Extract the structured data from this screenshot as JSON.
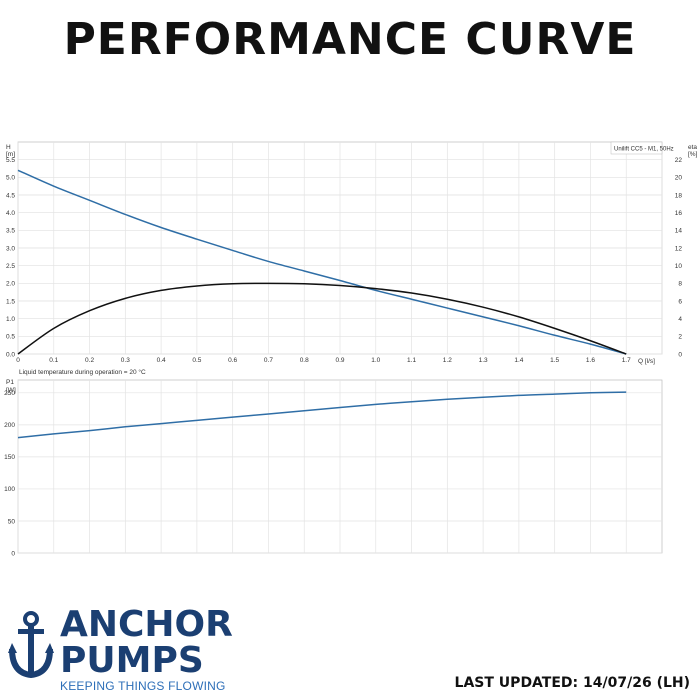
{
  "header": {
    "title": "PERFORMANCE CURVE"
  },
  "footer": {
    "brand_line1": "ANCHOR",
    "brand_line2": "PUMPS",
    "tagline": "KEEPING THINGS FLOWING",
    "updated": "LAST UPDATED: 14/07/26 (LH)"
  },
  "colors": {
    "head_curve": "#2f6ea6",
    "eta_curve": "#111111",
    "power_curve": "#2f6ea6",
    "grid": "#e3e3e3",
    "brand": "#1b3f72"
  },
  "chart_data": [
    {
      "type": "line",
      "title": "",
      "legend_label": "Unilift CC5 - M1, 50Hz",
      "legend_position": "top-right",
      "grid": true,
      "xlabel": "Q [l/s]",
      "x_ticks": [
        "0",
        "0.1",
        "0.2",
        "0.3",
        "0.4",
        "0.5",
        "0.6",
        "0.7",
        "0.8",
        "0.9",
        "1.0",
        "1.1",
        "1.2",
        "1.3",
        "1.4",
        "1.5",
        "1.6",
        "1.7"
      ],
      "xlim": [
        0,
        1.8
      ],
      "ylabel_left": [
        "H",
        "[m]"
      ],
      "y_left_ticks": [
        "0.0",
        "0.5",
        "1.0",
        "1.5",
        "2.0",
        "2.5",
        "3.0",
        "3.5",
        "4.0",
        "4.5",
        "5.0",
        "5.5"
      ],
      "ylim_left": [
        0,
        6.0
      ],
      "ylabel_right": [
        "eta",
        "[%]"
      ],
      "y_right_ticks": [
        "0",
        "2",
        "4",
        "6",
        "8",
        "10",
        "12",
        "14",
        "16",
        "18",
        "20",
        "22"
      ],
      "ylim_right": [
        0,
        24
      ],
      "note": "Liquid temperature during operation = 20 °C",
      "series": [
        {
          "axis": "left",
          "x": [
            0,
            0.1,
            0.2,
            0.3,
            0.4,
            0.5,
            0.6,
            0.7,
            0.8,
            0.9,
            1.0,
            1.1,
            1.2,
            1.3,
            1.4,
            1.5,
            1.6,
            1.7
          ],
          "values": [
            5.2,
            4.75,
            4.35,
            3.95,
            3.58,
            3.25,
            2.93,
            2.62,
            2.35,
            2.08,
            1.8,
            1.55,
            1.3,
            1.05,
            0.8,
            0.53,
            0.28,
            0.0
          ]
        },
        {
          "axis": "right",
          "x": [
            0,
            0.1,
            0.2,
            0.3,
            0.4,
            0.5,
            0.6,
            0.7,
            0.8,
            0.9,
            1.0,
            1.1,
            1.2,
            1.3,
            1.4,
            1.5,
            1.6,
            1.7
          ],
          "values": [
            0,
            2.9,
            4.9,
            6.3,
            7.2,
            7.7,
            7.95,
            8.0,
            7.95,
            7.75,
            7.4,
            6.9,
            6.2,
            5.3,
            4.2,
            2.9,
            1.5,
            0
          ]
        }
      ]
    },
    {
      "type": "line",
      "title": "",
      "grid": true,
      "xlim": [
        0,
        1.8
      ],
      "ylabel": [
        "P1",
        "[W]"
      ],
      "y_ticks": [
        "0",
        "50",
        "100",
        "150",
        "200",
        "250"
      ],
      "ylim": [
        0,
        270
      ],
      "series": [
        {
          "x": [
            0,
            0.1,
            0.2,
            0.3,
            0.4,
            0.5,
            0.6,
            0.7,
            0.8,
            0.9,
            1.0,
            1.1,
            1.2,
            1.3,
            1.4,
            1.5,
            1.6,
            1.7
          ],
          "values": [
            180,
            186,
            191,
            197,
            202,
            207,
            212,
            217,
            222,
            227,
            232,
            236,
            240,
            243,
            246,
            248,
            250,
            251
          ]
        }
      ]
    }
  ]
}
